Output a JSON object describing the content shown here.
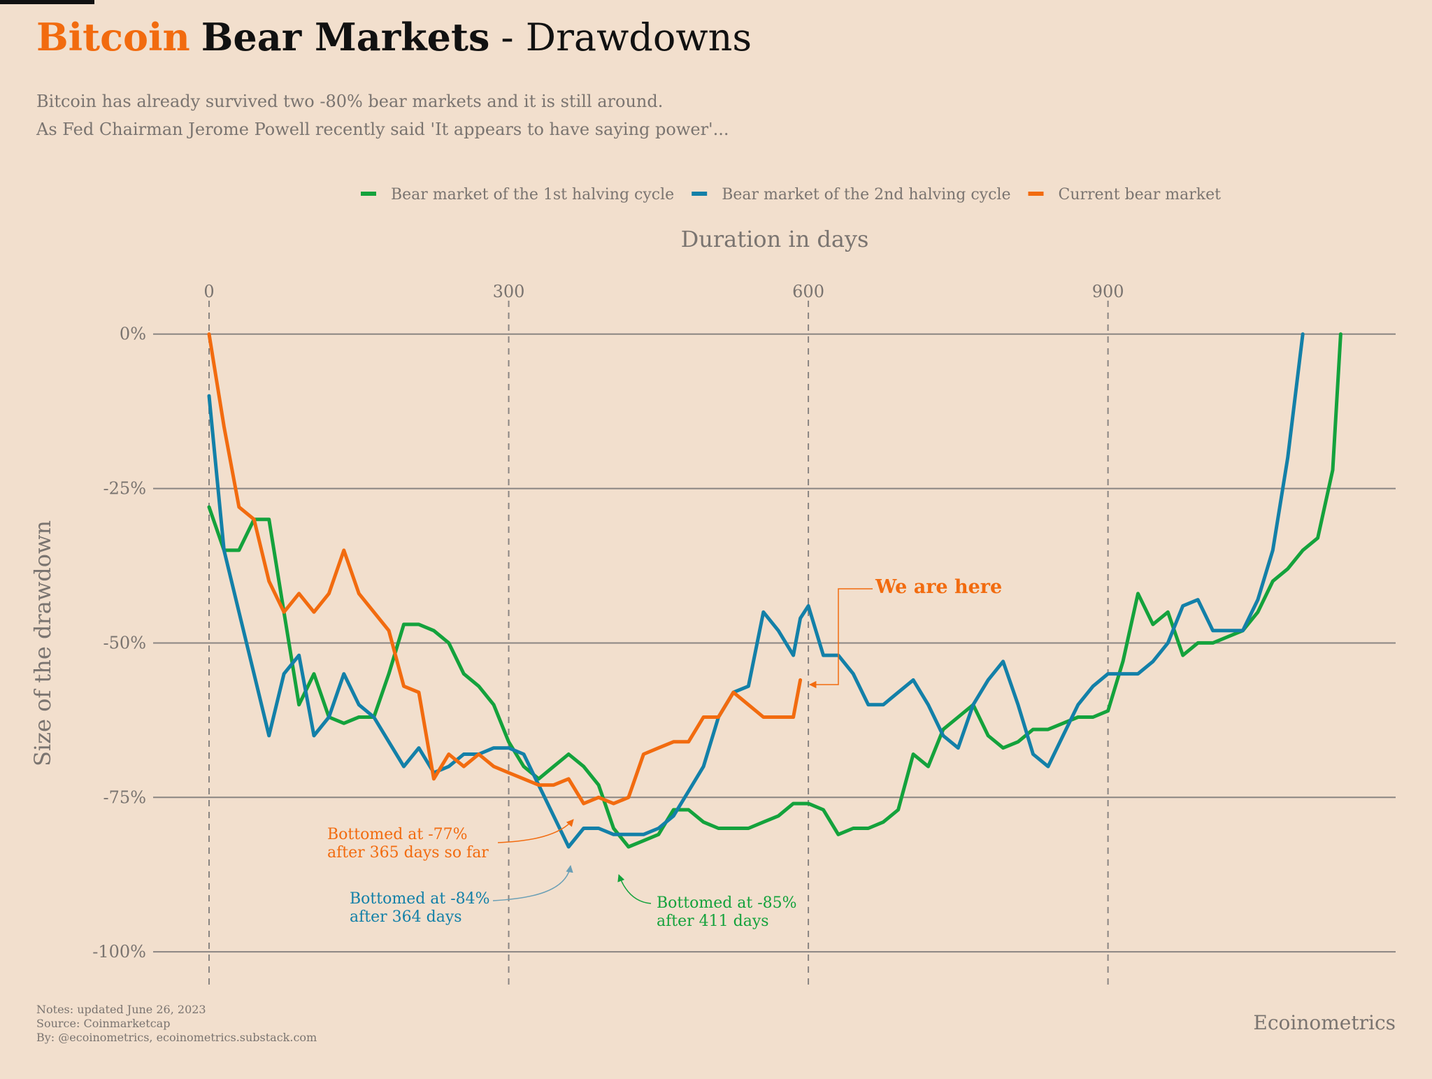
{
  "chart_data": {
    "type": "line",
    "title": {
      "highlight": "Bitcoin",
      "bold": "Bear Markets",
      "rest": "- Drawdowns"
    },
    "subtitle": [
      "Bitcoin has already survived two -80% bear markets and it is still around.",
      "As Fed Chairman Jerome Powell recently said 'It appears to have saying power'..."
    ],
    "x_label": "Duration in days",
    "y_label": "Size of the drawdown",
    "x": [
      0,
      15,
      30,
      45,
      60,
      75,
      90,
      105,
      120,
      135,
      150,
      165,
      180,
      195,
      210,
      225,
      240,
      255,
      270,
      285,
      300,
      315,
      330,
      345,
      360,
      375,
      390,
      405,
      420,
      435,
      450,
      465,
      480,
      495,
      510,
      525,
      540,
      555,
      570,
      585,
      592,
      600,
      615,
      630,
      645,
      660,
      675,
      690,
      705,
      720,
      735,
      750,
      765,
      780,
      795,
      810,
      825,
      840,
      855,
      870,
      885,
      900,
      915,
      930,
      945,
      960,
      975,
      990,
      1005,
      1020,
      1035,
      1050,
      1065,
      1080,
      1095,
      1110,
      1125,
      1133
    ],
    "series": [
      {
        "name": "Bear market of the 1st halving cycle",
        "color": "#14a23c",
        "values": [
          -28,
          -35,
          -35,
          -30,
          -30,
          -45,
          -60,
          -55,
          -62,
          -63,
          -62,
          -62,
          -55,
          -47,
          -47,
          -48,
          -50,
          -55,
          -57,
          -60,
          -66,
          -70,
          -72,
          -70,
          -68,
          -70,
          -73,
          -80,
          -83,
          -82,
          -81,
          -77,
          -77,
          -79,
          -80,
          -80,
          -80,
          -79,
          -78,
          -76,
          -76,
          -76,
          -77,
          -81,
          -80,
          -80,
          -79,
          -77,
          -68,
          -70,
          -64,
          -62,
          -60,
          -65,
          -67,
          -66,
          -64,
          -64,
          -63,
          -62,
          -62,
          -61,
          -53,
          -42,
          -47,
          -45,
          -52,
          -50,
          -50,
          -49,
          -48,
          -45,
          -40,
          -38,
          -35,
          -33,
          -22,
          0
        ]
      },
      {
        "name": "Bear market of the 2nd halving cycle",
        "color": "#1380a8",
        "values": [
          -10,
          -35,
          -45,
          -55,
          -65,
          -55,
          -52,
          -65,
          -62,
          -55,
          -60,
          -62,
          -66,
          -70,
          -67,
          -71,
          -70,
          -68,
          -68,
          -67,
          -67,
          -68,
          -73,
          -78,
          -83,
          -80,
          -80,
          -81,
          -81,
          -81,
          -80,
          -78,
          -74,
          -70,
          -62,
          -58,
          -57,
          -45,
          -48,
          -52,
          -46,
          -44,
          -52,
          -52,
          -55,
          -60,
          -60,
          -58,
          -56,
          -60,
          -65,
          -67,
          -60,
          -56,
          -53,
          -60,
          -68,
          -70,
          -65,
          -60,
          -57,
          -55,
          -55,
          -55,
          -53,
          -50,
          -44,
          -43,
          -48,
          -48,
          -48,
          -43,
          -35,
          -20,
          0,
          null,
          null,
          null
        ]
      },
      {
        "name": "Current bear market",
        "color": "#f26b0f",
        "values": [
          0,
          -15,
          -28,
          -30,
          -40,
          -45,
          -42,
          -45,
          -42,
          -35,
          -42,
          -45,
          -48,
          -57,
          -58,
          -72,
          -68,
          -70,
          -68,
          -70,
          -71,
          -72,
          -73,
          -73,
          -72,
          -76,
          -75,
          -76,
          -75,
          -68,
          -67,
          -66,
          -66,
          -62,
          -62,
          -58,
          -60,
          -62,
          -62,
          -62,
          -56,
          null,
          null,
          null,
          null,
          null,
          null,
          null,
          null,
          null,
          null,
          null,
          null,
          null,
          null,
          null,
          null,
          null,
          null,
          null,
          null,
          null,
          null,
          null,
          null,
          null,
          null,
          null,
          null,
          null,
          null,
          null,
          null,
          null,
          null,
          null,
          null,
          null
        ]
      }
    ],
    "xlim": [
      -56,
      1188
    ],
    "ylim": [
      -105.3,
      5.4
    ],
    "xticks": [
      0,
      300,
      600,
      900
    ],
    "yticks": [
      {
        "value": 0,
        "label": "0%"
      },
      {
        "value": -25,
        "label": "-25%"
      },
      {
        "value": -50,
        "label": "-50%"
      },
      {
        "value": -75,
        "label": "-75%"
      },
      {
        "value": -100,
        "label": "-100%"
      }
    ],
    "grid": true,
    "legend": "top",
    "annotations": [
      {
        "lines": [
          "Bottomed at -77%",
          "after 365 days so far"
        ],
        "color": "#f26b0f"
      },
      {
        "lines": [
          "Bottomed at -84%",
          "after 364 days"
        ],
        "color": "#1380a8"
      },
      {
        "lines": [
          "Bottomed at -85%",
          "after 411 days"
        ],
        "color": "#14a23c"
      },
      {
        "lines": [
          "We are here"
        ],
        "color": "#f26b0f"
      }
    ],
    "notes": [
      "Notes: updated June 26, 2023",
      "Source: Coinmarketcap",
      "By: @ecoinometrics, ecoinometrics.substack.com"
    ],
    "brand": "Ecoinometrics"
  }
}
